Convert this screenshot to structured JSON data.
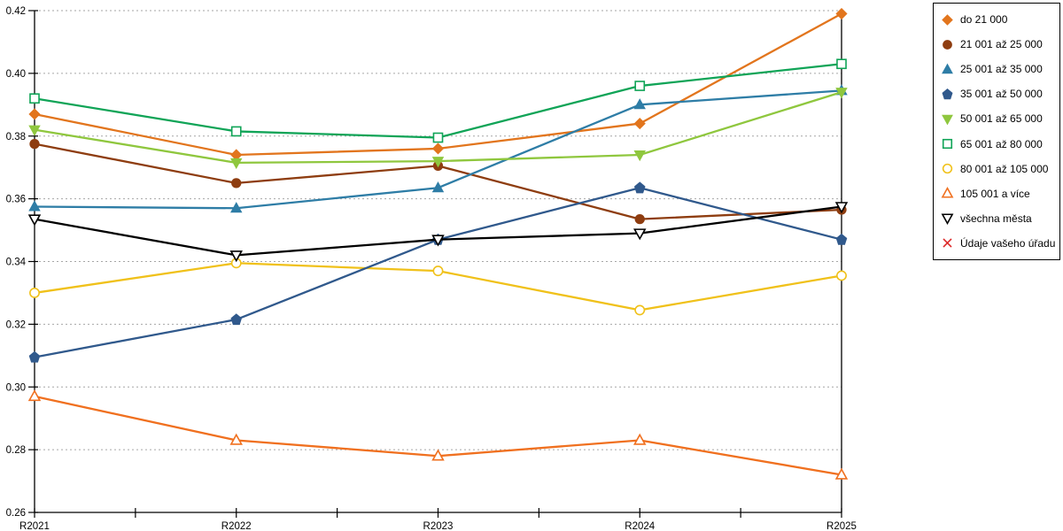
{
  "chart_data": {
    "type": "line",
    "title": "",
    "x_categories": [
      "R2021",
      "R2022",
      "R2023",
      "R2024",
      "R2025"
    ],
    "y_axis": {
      "min": 0.26,
      "max": 0.42,
      "step": 0.02,
      "tick_labels": [
        "0.42",
        "0.40",
        "0.38",
        "0.36",
        "0.34",
        "0.32",
        "0.30",
        "0.28",
        "0.26"
      ]
    },
    "grid": "horizontal dashed gridlines",
    "gridline_color": "#a6a6a6",
    "legend_position": "outside top-right, boxed",
    "series": [
      {
        "name": "do 21 000",
        "marker": "diamond-filled",
        "color": "#E2751D",
        "values": [
          0.387,
          0.374,
          0.376,
          0.384,
          0.419
        ]
      },
      {
        "name": "21 001 až 25 000",
        "marker": "circle-filled",
        "color": "#8E3D10",
        "values": [
          0.3775,
          0.365,
          0.3705,
          0.3535,
          0.3565
        ]
      },
      {
        "name": "25 001 až 35 000",
        "marker": "triangle-up-filled",
        "color": "#2E7DA6",
        "values": [
          0.3575,
          0.357,
          0.3635,
          0.39,
          0.3945
        ]
      },
      {
        "name": "35 001 až 50 000",
        "marker": "pentagon-filled",
        "color": "#30598C",
        "values": [
          0.3095,
          0.3215,
          0.347,
          0.3635,
          0.347
        ]
      },
      {
        "name": "50 001 až 65 000",
        "marker": "triangle-down-filled",
        "color": "#8FC73E",
        "values": [
          0.382,
          0.3715,
          0.372,
          0.374,
          0.394
        ]
      },
      {
        "name": "65 001 až 80 000",
        "marker": "square-open",
        "color": "#10A457",
        "values": [
          0.392,
          0.3815,
          0.3795,
          0.396,
          0.403
        ]
      },
      {
        "name": "80 001 až 105 000",
        "marker": "circle-open",
        "color": "#F0C11A",
        "values": [
          0.33,
          0.3395,
          0.337,
          0.3245,
          0.3355
        ]
      },
      {
        "name": "105 001 a více",
        "marker": "triangle-up-open",
        "color": "#F0701F",
        "values": [
          0.297,
          0.283,
          0.278,
          0.283,
          0.272
        ]
      },
      {
        "name": "všechna města",
        "marker": "triangle-down-open",
        "color": "#000000",
        "values": [
          0.3535,
          0.342,
          0.347,
          0.349,
          0.3575
        ]
      },
      {
        "name": "Údaje vašeho úřadu",
        "marker": "x-cross",
        "color": "#DC2828",
        "values": []
      }
    ]
  }
}
